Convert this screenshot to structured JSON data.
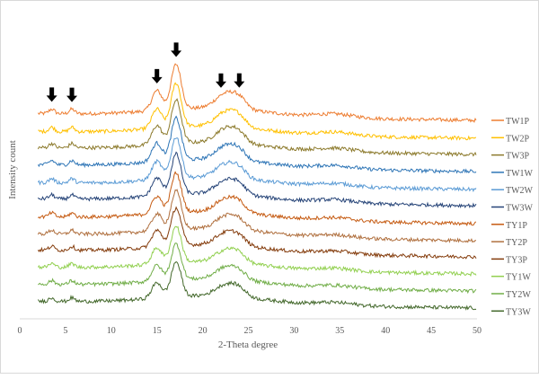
{
  "chart_data": {
    "type": "line",
    "title": "",
    "xlabel": "2-Theta degree",
    "ylabel": "Intensity count",
    "xlim": [
      0,
      50
    ],
    "x_data_range": [
      2,
      50
    ],
    "xticks": [
      0,
      5,
      10,
      15,
      20,
      25,
      30,
      35,
      40,
      45,
      50
    ],
    "ylim": [
      0,
      334
    ],
    "grid": false,
    "legend": "right",
    "stacked_offset_note_units": "arbitrary intensity",
    "peak_model": [
      {
        "two_theta": 3.5,
        "height": 5,
        "width": 0.3
      },
      {
        "two_theta": 5.7,
        "height": 5,
        "width": 0.3
      },
      {
        "two_theta": 15.0,
        "height": 22,
        "width": 0.55
      },
      {
        "two_theta": 17.1,
        "height": 50,
        "width": 0.55
      },
      {
        "two_theta": 22.5,
        "height": 16,
        "width": 1.1
      },
      {
        "two_theta": 24.0,
        "height": 10,
        "width": 0.8
      },
      {
        "two_theta": 34.5,
        "height": 4,
        "width": 2.0
      }
    ],
    "arrows_at": [
      3.5,
      5.7,
      15.0,
      17.1,
      22.0,
      24.0
    ],
    "series": [
      {
        "name": "TW1P",
        "color": "#ED7D31",
        "offset": 221
      },
      {
        "name": "TW2P",
        "color": "#FFC000",
        "offset": 201
      },
      {
        "name": "TW3P",
        "color": "#8C7A2C",
        "offset": 183
      },
      {
        "name": "TW1W",
        "color": "#2E75B6",
        "offset": 164
      },
      {
        "name": "TW2W",
        "color": "#5B9BD5",
        "offset": 144
      },
      {
        "name": "TW3W",
        "color": "#264478",
        "offset": 126
      },
      {
        "name": "TY1P",
        "color": "#C55A11",
        "offset": 106
      },
      {
        "name": "TY2P",
        "color": "#B0703F",
        "offset": 87
      },
      {
        "name": "TY3P",
        "color": "#843C0C",
        "offset": 69
      },
      {
        "name": "TY1W",
        "color": "#92D050",
        "offset": 50
      },
      {
        "name": "TY2W",
        "color": "#70AD47",
        "offset": 31
      },
      {
        "name": "TY3W",
        "color": "#43682B",
        "offset": 12
      }
    ]
  }
}
